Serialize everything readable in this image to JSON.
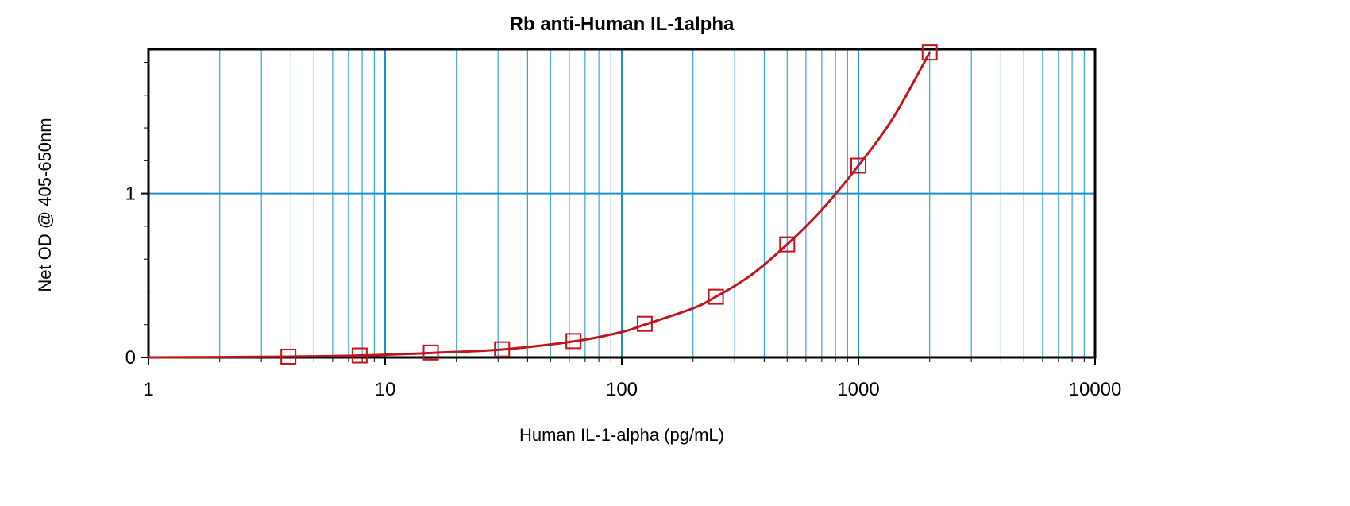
{
  "chart_data": {
    "type": "scatter",
    "title": "Rb anti-Human IL-1alpha",
    "xlabel": "Human IL-1-alpha (pg/mL)",
    "ylabel": "Net OD @ 405-650nm",
    "x_scale": "log",
    "xlim": [
      1,
      10000
    ],
    "ylim": [
      0,
      1.88
    ],
    "x_ticks": [
      "1",
      "10",
      "100",
      "1000",
      "10000"
    ],
    "y_ticks": [
      "0",
      "1"
    ],
    "grid": true,
    "legend": "none",
    "series": [
      {
        "marker": "open-square",
        "x": [
          3.9,
          7.8,
          15.6,
          31.2,
          62.5,
          125,
          250,
          500,
          1000,
          2000
        ],
        "y": [
          0.005,
          0.012,
          0.03,
          0.05,
          0.1,
          0.205,
          0.37,
          0.69,
          1.17,
          1.86
        ],
        "fit": {
          "type": "curve",
          "x": [
            1,
            2,
            4,
            8,
            16,
            32,
            64,
            100,
            125,
            200,
            250,
            350,
            500,
            700,
            1000,
            1400,
            2000
          ],
          "y": [
            0.0,
            0.002,
            0.005,
            0.012,
            0.028,
            0.05,
            0.1,
            0.155,
            0.2,
            0.3,
            0.37,
            0.5,
            0.69,
            0.9,
            1.17,
            1.46,
            1.86
          ]
        }
      }
    ],
    "colors": {
      "series": "#c0151b",
      "grid_major": "#1e90c8",
      "grid_minor": "#35a7d4",
      "axis": "#000000"
    }
  }
}
